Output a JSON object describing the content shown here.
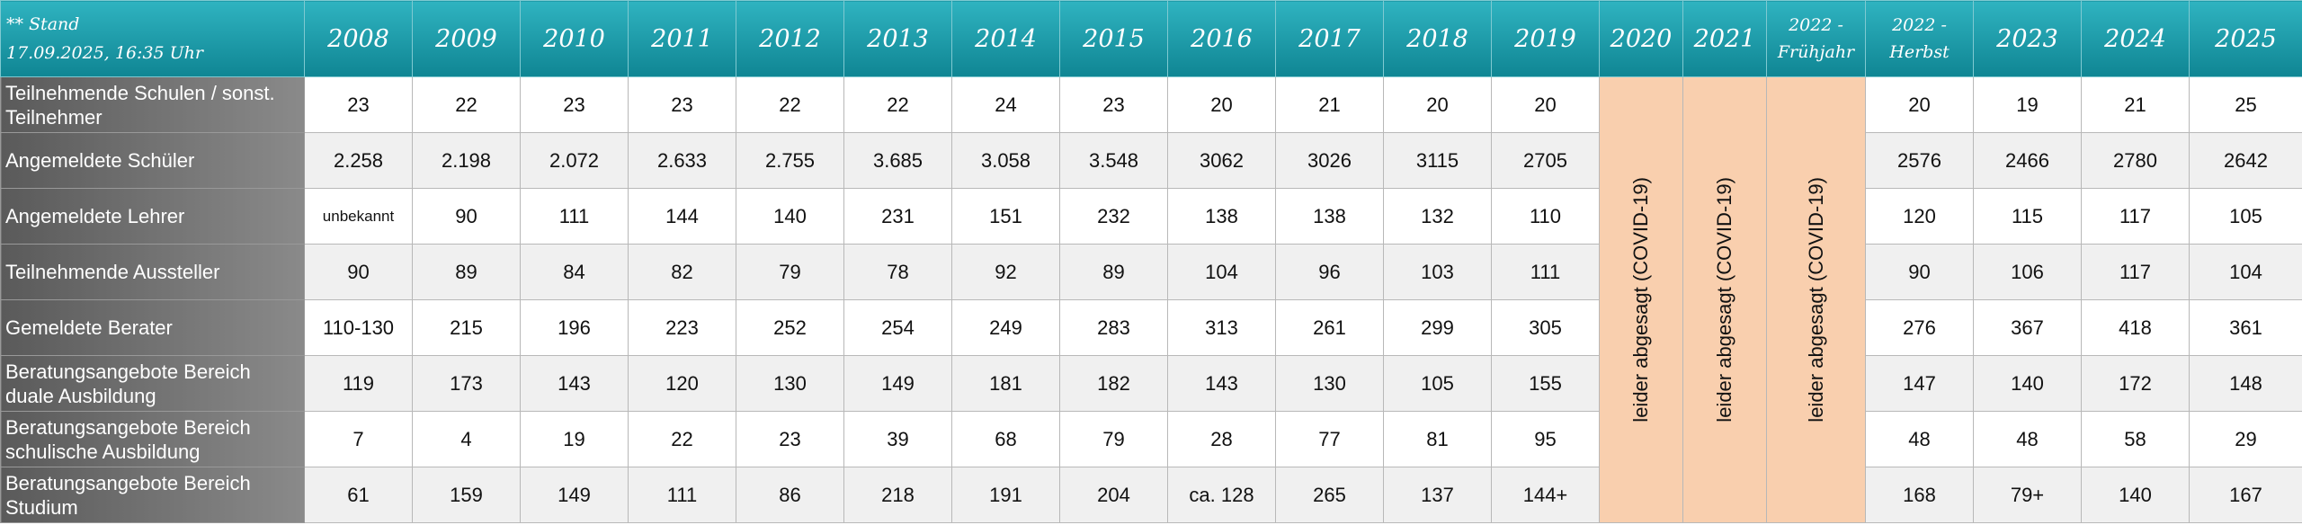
{
  "header": {
    "stand": [
      "** Stand",
      "17.09.2025, 16:35 Uhr"
    ],
    "columns": [
      [
        "2008"
      ],
      [
        "2009"
      ],
      [
        "2010"
      ],
      [
        "2011"
      ],
      [
        "2012"
      ],
      [
        "2013"
      ],
      [
        "2014"
      ],
      [
        "2015"
      ],
      [
        "2016"
      ],
      [
        "2017"
      ],
      [
        "2018"
      ],
      [
        "2019"
      ],
      [
        "2020"
      ],
      [
        "2021"
      ],
      [
        "2022 -",
        "Frühjahr"
      ],
      [
        "2022 -",
        "Herbst"
      ],
      [
        "2023"
      ],
      [
        "2024"
      ],
      [
        "2025"
      ]
    ]
  },
  "covid": [
    "leider abgesagt (COVID-19)",
    "leider abgesagt (COVID-19)",
    "leider abgesagt (COVID-19)"
  ],
  "rows": [
    {
      "label": "Teilnehmende Schulen / sonst. Teilnehmer",
      "values": [
        "23",
        "22",
        "23",
        "23",
        "22",
        "22",
        "24",
        "23",
        "20",
        "21",
        "20",
        "20",
        "20",
        "19",
        "21",
        "25"
      ]
    },
    {
      "label": "Angemeldete Schüler",
      "values": [
        "2.258",
        "2.198",
        "2.072",
        "2.633",
        "2.755",
        "3.685",
        "3.058",
        "3.548",
        "3062",
        "3026",
        "3115",
        "2705",
        "2576",
        "2466",
        "2780",
        "2642"
      ]
    },
    {
      "label": "Angemeldete Lehrer",
      "values": [
        "unbekannt",
        "90",
        "111",
        "144",
        "140",
        "231",
        "151",
        "232",
        "138",
        "138",
        "132",
        "110",
        "120",
        "115",
        "117",
        "105"
      ]
    },
    {
      "label": "Teilnehmende Aussteller",
      "values": [
        "90",
        "89",
        "84",
        "82",
        "79",
        "78",
        "92",
        "89",
        "104",
        "96",
        "103",
        "111",
        "90",
        "106",
        "117",
        "104"
      ]
    },
    {
      "label": "Gemeldete Berater",
      "values": [
        "110-130",
        "215",
        "196",
        "223",
        "252",
        "254",
        "249",
        "283",
        "313",
        "261",
        "299",
        "305",
        "276",
        "367",
        "418",
        "361"
      ]
    },
    {
      "label": "Beratungsangebote Bereich duale Ausbildung",
      "values": [
        "119",
        "173",
        "143",
        "120",
        "130",
        "149",
        "181",
        "182",
        "143",
        "130",
        "105",
        "155",
        "147",
        "140",
        "172",
        "148"
      ]
    },
    {
      "label": "Beratungsangebote Bereich schulische Ausbildung",
      "values": [
        "7",
        "4",
        "19",
        "22",
        "23",
        "39",
        "68",
        "79",
        "28",
        "77",
        "81",
        "95",
        "48",
        "48",
        "58",
        "29"
      ]
    },
    {
      "label": "Beratungsangebote Bereich Studium",
      "values": [
        "61",
        "159",
        "149",
        "111",
        "86",
        "218",
        "191",
        "204",
        "ca. 128",
        "265",
        "137",
        "144+",
        "168",
        "79+",
        "140",
        "167"
      ]
    }
  ]
}
